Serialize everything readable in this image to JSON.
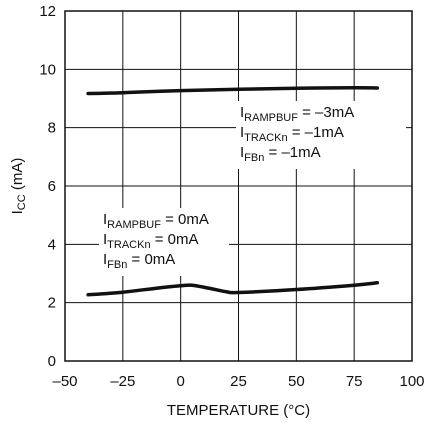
{
  "chart_data": {
    "type": "line",
    "xlabel": "TEMPERATURE (°C)",
    "ylabel_main": "I",
    "ylabel_sub": "CC",
    "ylabel_unit": " (mA)",
    "xlim": [
      -50,
      100
    ],
    "ylim": [
      0,
      12
    ],
    "x_ticks": [
      -50,
      -25,
      0,
      25,
      50,
      75,
      100
    ],
    "x_tick_labels": [
      "–50",
      "–25",
      "0",
      "25",
      "50",
      "75",
      "100"
    ],
    "y_ticks": [
      0,
      2,
      4,
      6,
      8,
      10,
      12
    ],
    "y_tick_labels": [
      "0",
      "2",
      "4",
      "6",
      "8",
      "10",
      "12"
    ],
    "grid": true,
    "series": [
      {
        "x": [
          -40,
          -25,
          0,
          25,
          50,
          75,
          85
        ],
        "y": [
          9.17,
          9.2,
          9.27,
          9.32,
          9.35,
          9.37,
          9.36
        ]
      },
      {
        "x": [
          -40,
          -25,
          -10,
          0,
          5,
          12,
          20,
          25,
          50,
          75,
          85
        ],
        "y": [
          2.27,
          2.36,
          2.5,
          2.58,
          2.6,
          2.5,
          2.37,
          2.35,
          2.45,
          2.6,
          2.68
        ]
      }
    ],
    "annotations": [
      {
        "lines": [
          {
            "main": "I",
            "sub": "RAMPBUF",
            "rest": " = –3mA"
          },
          {
            "main": "I",
            "sub": "TRACKn",
            "rest": " = –1mA"
          },
          {
            "main": "I",
            "sub": "FBn",
            "rest": " = –1mA"
          }
        ]
      },
      {
        "lines": [
          {
            "main": "I",
            "sub": "RAMPBUF",
            "rest": " = 0mA"
          },
          {
            "main": "I",
            "sub": "TRACKn",
            "rest": " = 0mA"
          },
          {
            "main": "I",
            "sub": "FBn",
            "rest": " = 0mA"
          }
        ]
      }
    ]
  }
}
